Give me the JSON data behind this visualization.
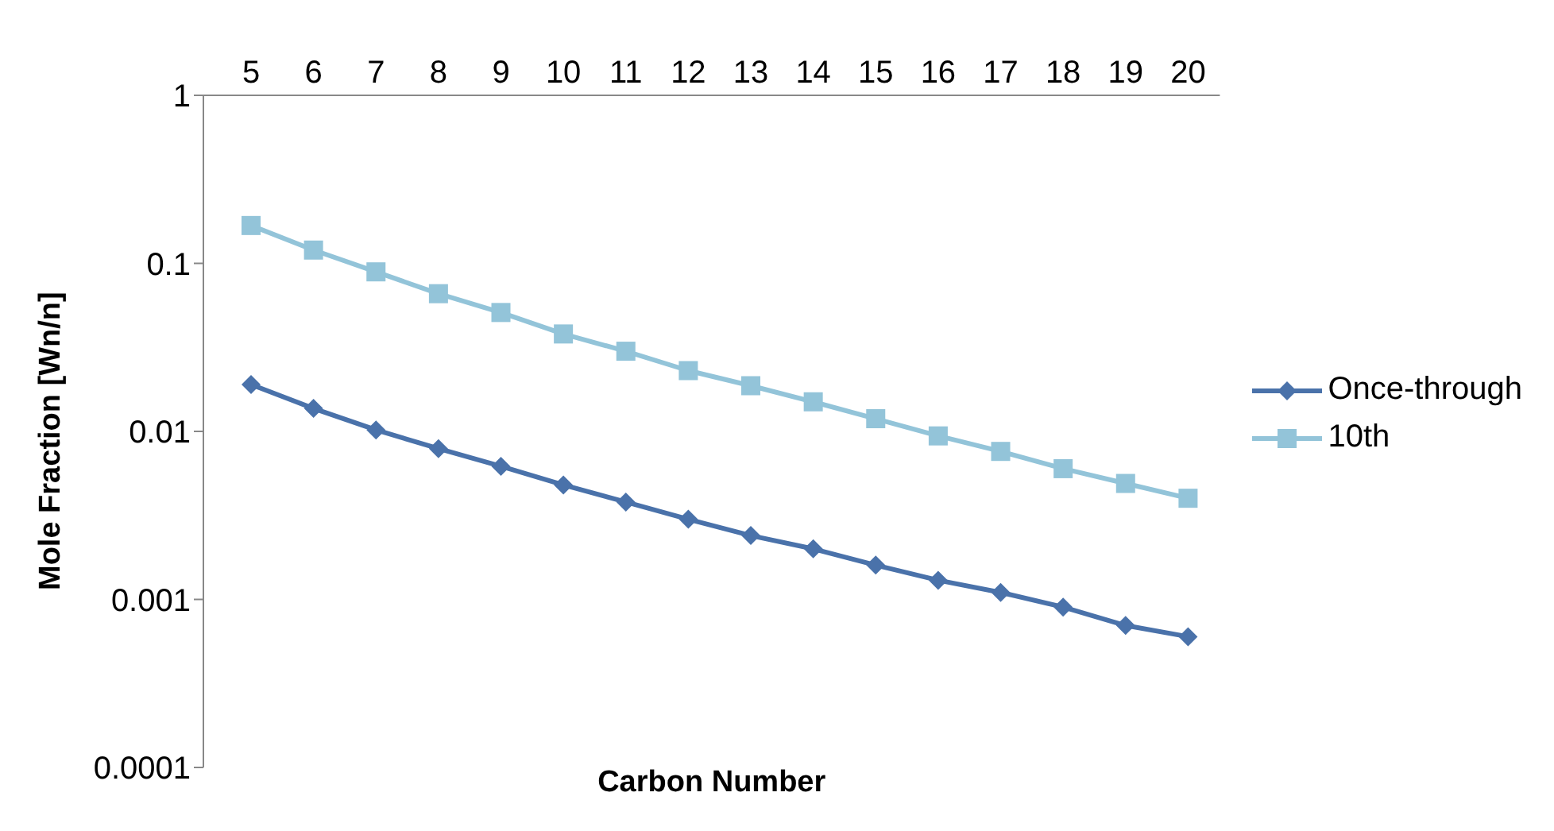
{
  "chart_data": {
    "type": "line",
    "xlabel": "Carbon Number",
    "ylabel": "Mole Fraction [Wn/n]",
    "categories": [
      "5",
      "6",
      "7",
      "8",
      "9",
      "10",
      "11",
      "12",
      "13",
      "14",
      "15",
      "16",
      "17",
      "18",
      "19",
      "20"
    ],
    "log": true,
    "ylim": [
      0.0001,
      1
    ],
    "yticks": [
      0.0001,
      0.001,
      0.01,
      0.1,
      1
    ],
    "grid": false,
    "legend": "right",
    "series": [
      {
        "name": "Once-through",
        "color": "#4a72aa",
        "marker": "diamond",
        "values": [
          0.019,
          0.0137,
          0.0102,
          0.0079,
          0.0062,
          0.0048,
          0.0038,
          0.003,
          0.0024,
          0.002,
          0.0016,
          0.0013,
          0.0011,
          0.0009,
          0.0007,
          0.0006
        ]
      },
      {
        "name": "10th",
        "color": "#93c4d9",
        "marker": "square",
        "values": [
          0.168,
          0.12,
          0.089,
          0.066,
          0.051,
          0.038,
          0.03,
          0.023,
          0.0187,
          0.015,
          0.0119,
          0.0094,
          0.0076,
          0.006,
          0.0049,
          0.004
        ]
      }
    ]
  }
}
